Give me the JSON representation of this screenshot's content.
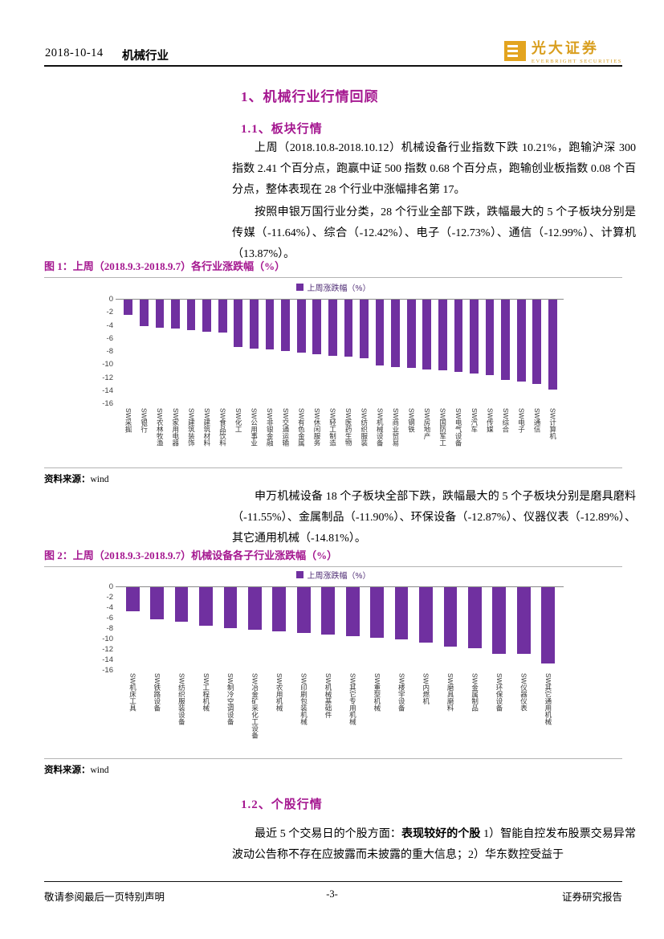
{
  "header": {
    "date": "2018-10-14",
    "industry": "机械行业"
  },
  "logo": {
    "cn": "光大证券",
    "en": "EVERBRIGHT SECURITIES"
  },
  "sections": {
    "s1": "1、机械行业行情回顾",
    "s11": "1.1、板块行情",
    "p1": "上周（2018.10.8-2018.10.12）机械设备行业指数下跌 10.21%，跑输沪深 300 指数 2.41 个百分点，跑赢中证 500 指数 0.68 个百分点，跑输创业板指数 0.08 个百分点，整体表现在 28 个行业中涨幅排名第 17。",
    "p2": "按照申银万国行业分类，28 个行业全部下跌，跌幅最大的 5 个子板块分别是传媒（-11.64%）、综合（-12.42%）、电子（-12.73%）、通信（-12.99%）、计算机（13.87%）。",
    "fig1_caption": "图 1：上周（2018.9.3-2018.9.7）各行业涨跌幅（%）",
    "p3": "申万机械设备 18 个子板块全部下跌，跌幅最大的 5 个子板块分别是磨具磨料（-11.55%）、金属制品（-11.90%）、环保设备（-12.87%）、仪器仪表（-12.89%）、其它通用机械（-14.81%）。",
    "fig2_caption": "图 2：上周（2018.9.3-2018.9.7）机械设备各子行业涨跌幅（%）",
    "s12": "1.2、个股行情",
    "p4_prefix": "最近 5 个交易日的个股方面：",
    "p4_bold": "表现较好的个股",
    "p4_rest": " 1）智能自控发布股票交易异常波动公告称不存在应披露而未披露的重大信息；2）华东数控受益于"
  },
  "source": {
    "label": "资料来源：",
    "value": "wind"
  },
  "footer": {
    "left": "敬请参阅最后一页特别声明",
    "center": "-3-",
    "right": "证券研究报告"
  },
  "colors": {
    "accent": "#A51890",
    "bar": "#7030A0",
    "brand_gold": "#D99E1E"
  },
  "chart_data": [
    {
      "type": "bar",
      "title": "上周（2018.9.3-2018.9.7）各行业涨跌幅（%）",
      "legend": "上周涨跌幅（%）",
      "ylabel": "",
      "xlabel": "",
      "ylim": [
        -16,
        0
      ],
      "yticks": [
        "0",
        "-2",
        "-4",
        "-6",
        "-8",
        "-10",
        "-12",
        "-14",
        "-16"
      ],
      "grid": false,
      "legend_position": "top-center",
      "bar_color": "#7030A0",
      "categories": [
        "SW采掘",
        "SW银行",
        "SW农林牧渔",
        "SW家用电器",
        "SW建筑装饰",
        "SW建筑材料",
        "SW食品饮料",
        "SW化工",
        "SW公用事业",
        "SW非银金融",
        "SW交通运输",
        "SW有色金属",
        "SW休闲服务",
        "SW轻工制造",
        "SW医药生物",
        "SW纺织服装",
        "SW机械设备",
        "SW商业贸易",
        "SW钢铁",
        "SW房地产",
        "SW国防军工",
        "SW电气设备",
        "SW汽车",
        "SW传媒",
        "SW综合",
        "SW电子",
        "SW通信",
        "SW计算机"
      ],
      "values": [
        -2.4,
        -4.2,
        -4.4,
        -4.6,
        -4.8,
        -5.0,
        -5.2,
        -7.4,
        -7.6,
        -7.8,
        -8.0,
        -8.2,
        -8.5,
        -8.7,
        -8.9,
        -9.1,
        -10.21,
        -10.4,
        -10.6,
        -10.8,
        -11.0,
        -11.2,
        -11.4,
        -11.64,
        -12.42,
        -12.73,
        -12.99,
        -13.87
      ]
    },
    {
      "type": "bar",
      "title": "上周（2018.9.3-2018.9.7）机械设备各子行业涨跌幅（%）",
      "legend": "上周涨跌幅（%）",
      "ylabel": "",
      "xlabel": "",
      "ylim": [
        -16,
        0
      ],
      "yticks": [
        "0",
        "-2",
        "-4",
        "-6",
        "-8",
        "-10",
        "-12",
        "-14",
        "-16"
      ],
      "grid": false,
      "legend_position": "top-center",
      "bar_color": "#7030A0",
      "categories": [
        "SW机床工具",
        "SW铁路设备",
        "SW纺织服装设备",
        "SW工程机械",
        "SW制冷空调设备",
        "SW冶金矿采化工设备",
        "SW农用机械",
        "SW印刷包装机械",
        "SW机械基础件",
        "SW其它专用机械",
        "SW重型机械",
        "SW楼宇设备",
        "SW内燃机",
        "SW磨具磨料",
        "SW金属制品",
        "SW环保设备",
        "SW仪器仪表",
        "SW其它通用机械"
      ],
      "values": [
        -4.8,
        -6.3,
        -6.8,
        -7.5,
        -8.0,
        -8.3,
        -8.6,
        -8.9,
        -9.2,
        -9.5,
        -9.8,
        -10.2,
        -10.8,
        -11.55,
        -11.9,
        -12.87,
        -12.89,
        -14.81
      ]
    }
  ]
}
